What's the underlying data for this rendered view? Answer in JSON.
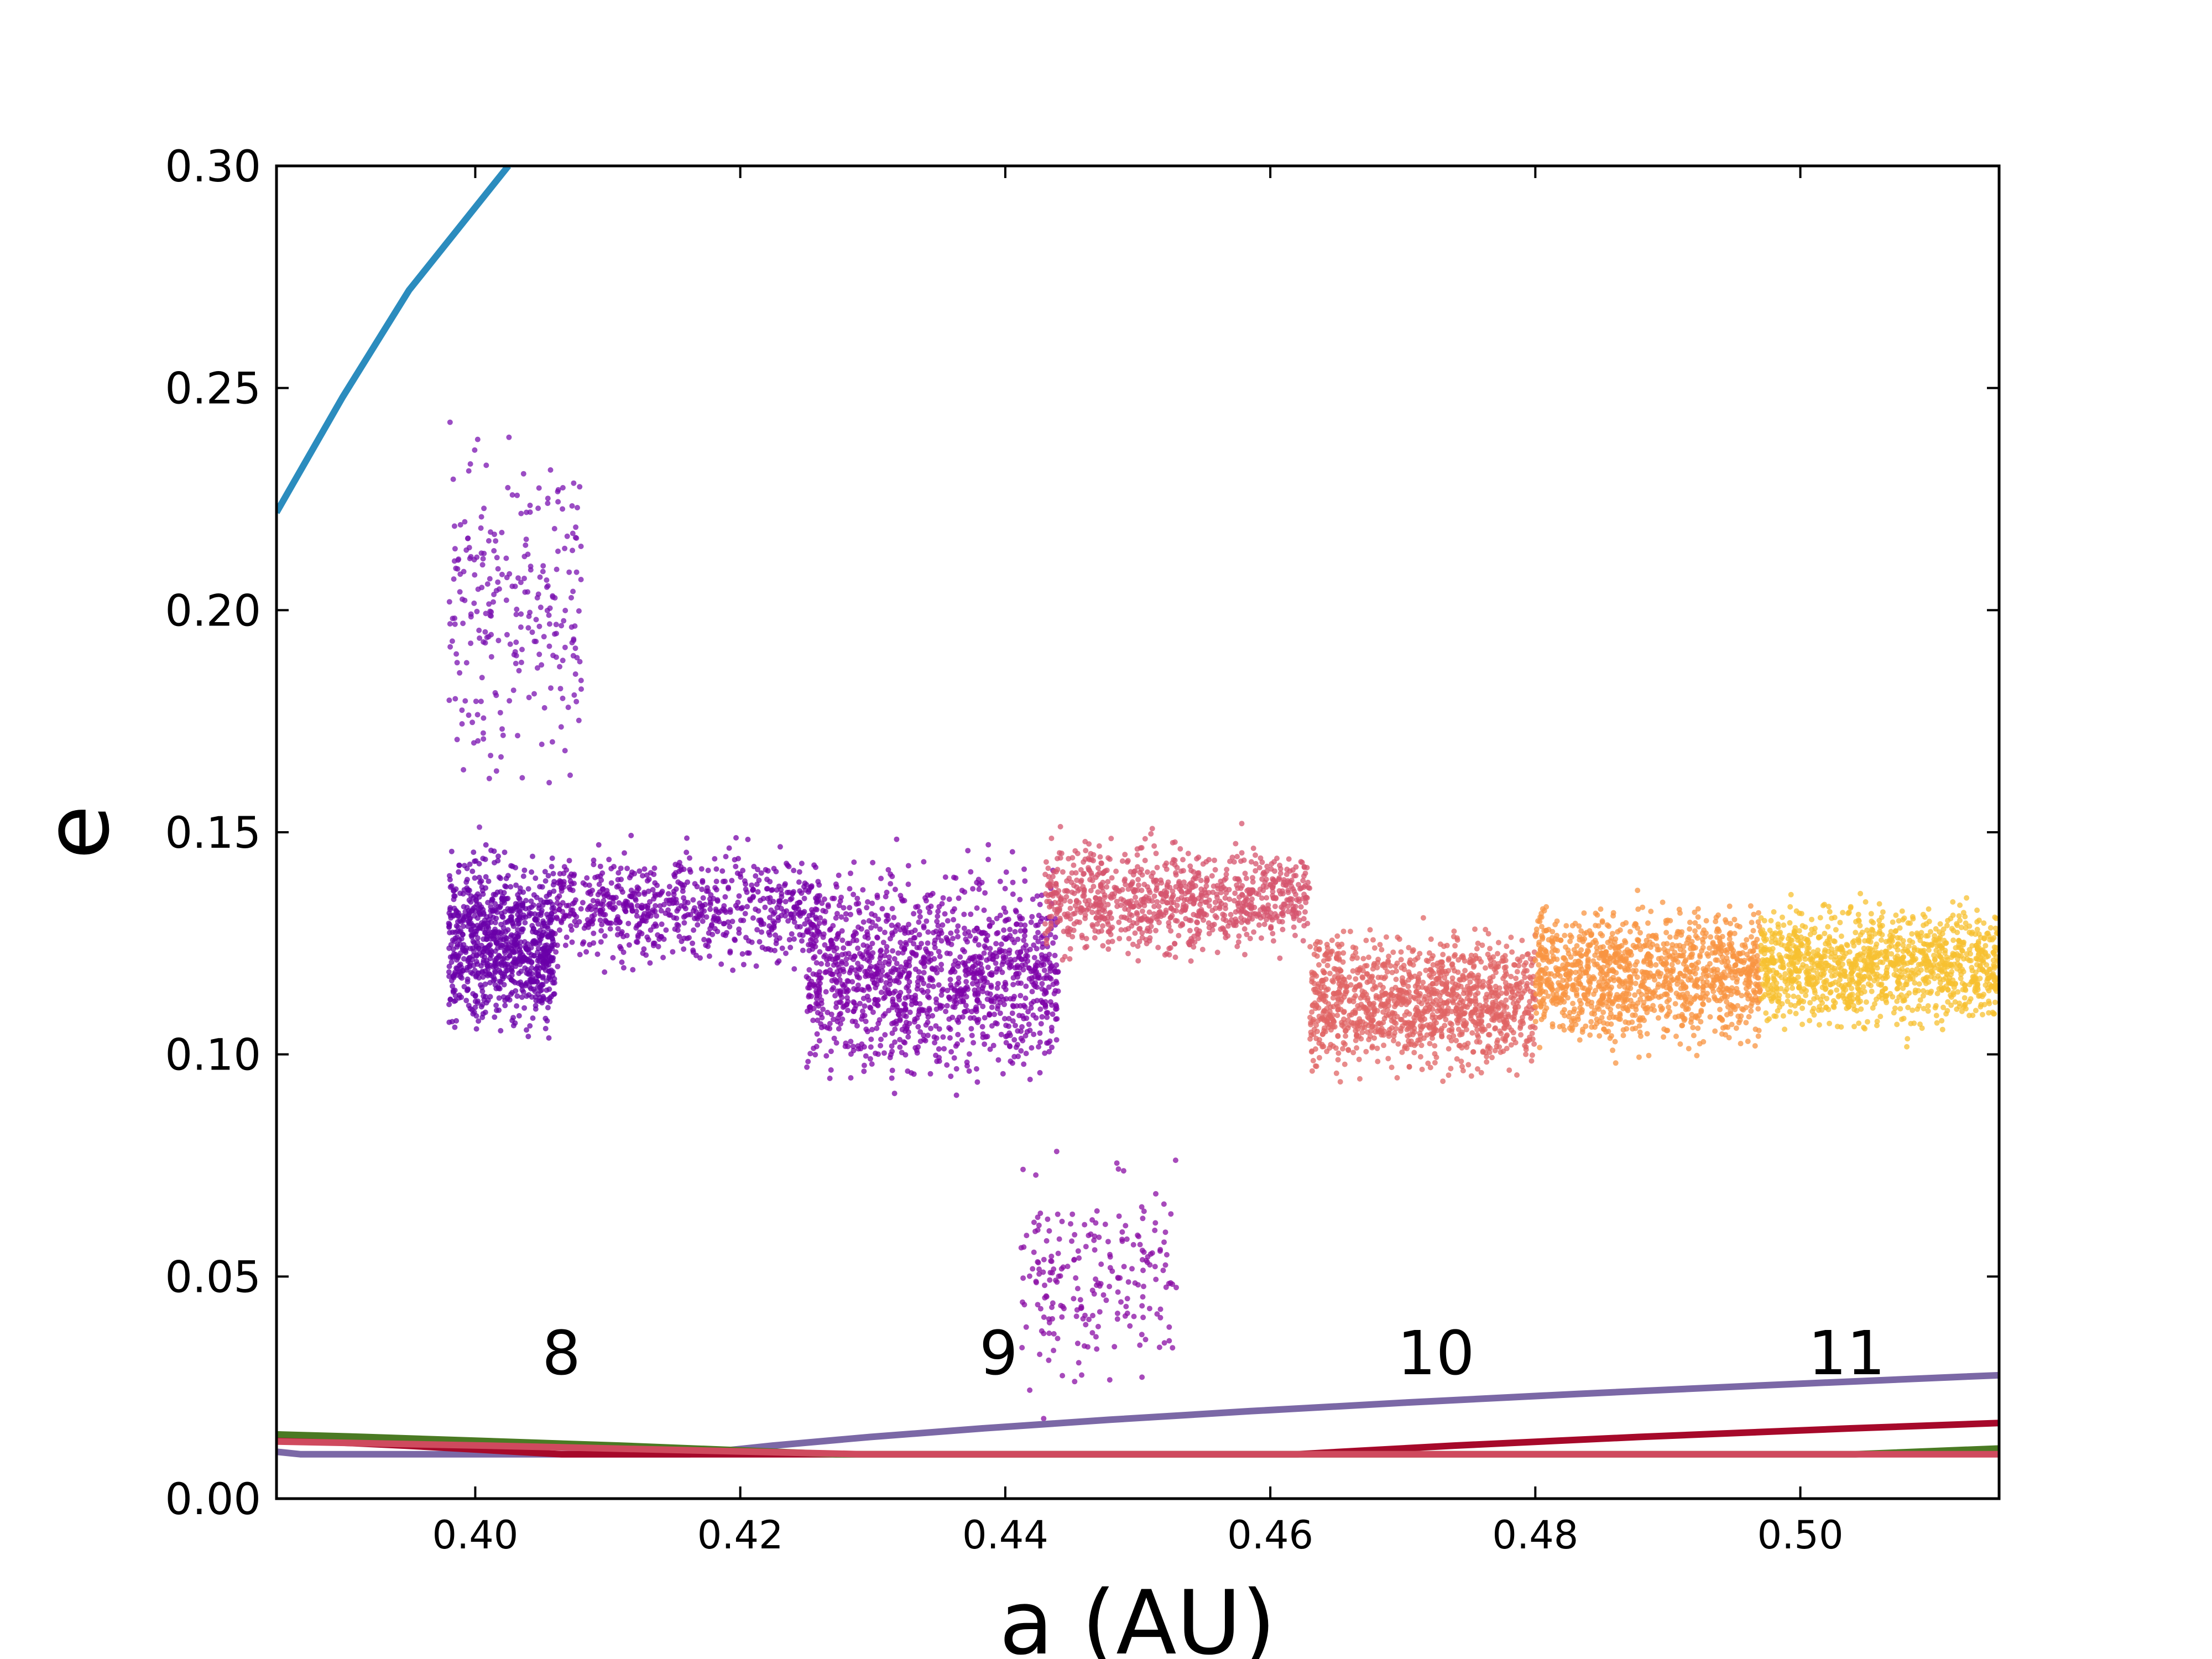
{
  "chart_data": {
    "type": "scatter",
    "title": "",
    "xlabel": "a (AU)",
    "ylabel": "e",
    "xlim": [
      0.385,
      0.515
    ],
    "ylim": [
      0.0,
      0.3
    ],
    "grid": false,
    "legend": "none",
    "x_ticks": [
      {
        "value": 0.4,
        "label": "0.40"
      },
      {
        "value": 0.42,
        "label": "0.42"
      },
      {
        "value": 0.44,
        "label": "0.44"
      },
      {
        "value": 0.46,
        "label": "0.46"
      },
      {
        "value": 0.48,
        "label": "0.48"
      },
      {
        "value": 0.5,
        "label": "0.50"
      }
    ],
    "y_ticks": [
      {
        "value": 0.0,
        "label": "0.00"
      },
      {
        "value": 0.05,
        "label": "0.05"
      },
      {
        "value": 0.1,
        "label": "0.10"
      },
      {
        "value": 0.15,
        "label": "0.15"
      },
      {
        "value": 0.2,
        "label": "0.20"
      },
      {
        "value": 0.25,
        "label": "0.25"
      },
      {
        "value": 0.3,
        "label": "0.30"
      }
    ],
    "resonance_curves": [
      {
        "label": "8",
        "center_a": 0.4015,
        "color": "#7b68a6",
        "k": 0.0068,
        "label_a": 0.4065,
        "label_e": 0.028
      },
      {
        "label": "9",
        "center_a": 0.4343,
        "color": "#a6092a",
        "k": 0.0036,
        "label_a": 0.4395,
        "label_e": 0.028
      },
      {
        "label": "10",
        "center_a": 0.4657,
        "color": "#4a7a23",
        "k": 0.0026,
        "label_a": 0.4725,
        "label_e": 0.028
      },
      {
        "label": "11",
        "center_a": 0.4958,
        "color": "#cf4a5e",
        "k": 0.0015,
        "label_a": 0.5035,
        "label_e": 0.028
      }
    ],
    "extra_curve": {
      "color": "#2b8cbe",
      "points": [
        [
          0.385,
          0.222
        ],
        [
          0.39,
          0.248
        ],
        [
          0.395,
          0.272
        ],
        [
          0.4025,
          0.3
        ]
      ]
    },
    "scatter_clusters": [
      {
        "name_note": "",
        "a_range": [
          0.398,
          0.406
        ],
        "e_center": 0.125,
        "e_spread": 0.018,
        "count": 900,
        "color": "#6a00a8"
      },
      {
        "name_note": "",
        "a_range": [
          0.398,
          0.408
        ],
        "e_center": 0.2,
        "e_spread": 0.04,
        "count": 260,
        "color": "#7a12b0"
      },
      {
        "name_note": "",
        "a_range": [
          0.406,
          0.426
        ],
        "e_center": 0.133,
        "e_spread": 0.012,
        "count": 700,
        "color": "#7500a8"
      },
      {
        "name_note": "",
        "a_range": [
          0.425,
          0.444
        ],
        "e_center": 0.118,
        "e_spread": 0.022,
        "count": 1300,
        "color": "#7e03a8"
      },
      {
        "name_note": "",
        "a_range": [
          0.441,
          0.453
        ],
        "e_center": 0.05,
        "e_spread": 0.025,
        "count": 220,
        "color": "#8a0da4"
      },
      {
        "name_note": "",
        "a_range": [
          0.443,
          0.463
        ],
        "e_center": 0.135,
        "e_spread": 0.012,
        "count": 900,
        "color": "#d6546e"
      },
      {
        "name_note": "",
        "a_range": [
          0.463,
          0.48
        ],
        "e_center": 0.112,
        "e_spread": 0.015,
        "count": 1200,
        "color": "#e06464"
      },
      {
        "name_note": "",
        "a_range": [
          0.48,
          0.497
        ],
        "e_center": 0.118,
        "e_spread": 0.015,
        "count": 1200,
        "color": "#f89441"
      },
      {
        "name_note": "",
        "a_range": [
          0.497,
          0.515
        ],
        "e_center": 0.12,
        "e_spread": 0.013,
        "count": 1200,
        "color": "#f7c030"
      }
    ]
  }
}
